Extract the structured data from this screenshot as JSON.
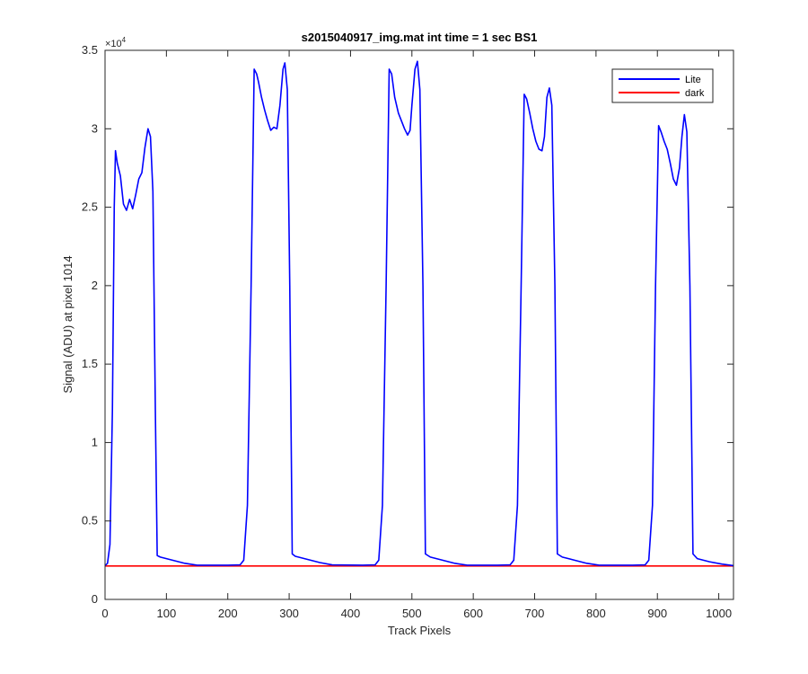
{
  "chart_data": {
    "type": "line",
    "title": "s2015040917_img.mat int time = 1 sec   BS1",
    "xlabel": "Track Pixels",
    "ylabel": "Signal (ADU) at pixel 1014",
    "xlim": [
      0,
      1024
    ],
    "ylim": [
      0,
      35000
    ],
    "x_ticks": [
      0,
      100,
      200,
      300,
      400,
      500,
      600,
      700,
      800,
      900,
      1000
    ],
    "x_tick_labels": [
      "0",
      "100",
      "200",
      "300",
      "400",
      "500",
      "600",
      "700",
      "800",
      "900",
      "1000"
    ],
    "y_ticks": [
      0,
      5000,
      10000,
      15000,
      20000,
      25000,
      30000,
      35000
    ],
    "y_tick_labels": [
      "0",
      "0.5",
      "1",
      "1.5",
      "2",
      "2.5",
      "3",
      "3.5"
    ],
    "y_multiplier_label": "×10",
    "y_multiplier_exponent": "4",
    "grid": false,
    "legend_position": "top-right",
    "series": [
      {
        "name": "Lite",
        "color": "#0000ff",
        "points": [
          [
            0,
            2150
          ],
          [
            4,
            2300
          ],
          [
            8,
            3500
          ],
          [
            12,
            12000
          ],
          [
            15,
            25000
          ],
          [
            17,
            28600
          ],
          [
            20,
            27800
          ],
          [
            25,
            27000
          ],
          [
            30,
            25200
          ],
          [
            35,
            24800
          ],
          [
            40,
            25500
          ],
          [
            45,
            24900
          ],
          [
            50,
            25800
          ],
          [
            55,
            26800
          ],
          [
            60,
            27200
          ],
          [
            65,
            28800
          ],
          [
            70,
            30000
          ],
          [
            74,
            29500
          ],
          [
            78,
            26000
          ],
          [
            82,
            12000
          ],
          [
            85,
            2800
          ],
          [
            90,
            2700
          ],
          [
            110,
            2500
          ],
          [
            130,
            2300
          ],
          [
            150,
            2180
          ],
          [
            200,
            2180
          ],
          [
            220,
            2200
          ],
          [
            226,
            2500
          ],
          [
            232,
            6000
          ],
          [
            238,
            20000
          ],
          [
            243,
            33800
          ],
          [
            247,
            33500
          ],
          [
            250,
            33000
          ],
          [
            255,
            32000
          ],
          [
            260,
            31200
          ],
          [
            265,
            30500
          ],
          [
            270,
            29900
          ],
          [
            275,
            30100
          ],
          [
            280,
            30000
          ],
          [
            285,
            31500
          ],
          [
            290,
            33800
          ],
          [
            293,
            34200
          ],
          [
            297,
            32500
          ],
          [
            301,
            20000
          ],
          [
            305,
            2900
          ],
          [
            310,
            2750
          ],
          [
            330,
            2550
          ],
          [
            350,
            2350
          ],
          [
            370,
            2200
          ],
          [
            420,
            2180
          ],
          [
            440,
            2200
          ],
          [
            446,
            2500
          ],
          [
            452,
            6000
          ],
          [
            458,
            20000
          ],
          [
            463,
            33800
          ],
          [
            467,
            33500
          ],
          [
            472,
            32000
          ],
          [
            478,
            31000
          ],
          [
            483,
            30500
          ],
          [
            488,
            30000
          ],
          [
            493,
            29600
          ],
          [
            497,
            29900
          ],
          [
            500,
            31500
          ],
          [
            505,
            33800
          ],
          [
            509,
            34300
          ],
          [
            513,
            32500
          ],
          [
            518,
            20000
          ],
          [
            522,
            2900
          ],
          [
            530,
            2700
          ],
          [
            550,
            2500
          ],
          [
            570,
            2300
          ],
          [
            590,
            2180
          ],
          [
            640,
            2180
          ],
          [
            660,
            2200
          ],
          [
            666,
            2500
          ],
          [
            672,
            6000
          ],
          [
            678,
            20000
          ],
          [
            683,
            32200
          ],
          [
            687,
            31900
          ],
          [
            692,
            31000
          ],
          [
            697,
            30000
          ],
          [
            702,
            29200
          ],
          [
            707,
            28700
          ],
          [
            712,
            28600
          ],
          [
            716,
            29500
          ],
          [
            720,
            32000
          ],
          [
            724,
            32600
          ],
          [
            728,
            31500
          ],
          [
            733,
            20000
          ],
          [
            737,
            2900
          ],
          [
            745,
            2700
          ],
          [
            765,
            2500
          ],
          [
            785,
            2300
          ],
          [
            805,
            2180
          ],
          [
            860,
            2180
          ],
          [
            880,
            2200
          ],
          [
            886,
            2500
          ],
          [
            892,
            6000
          ],
          [
            897,
            20000
          ],
          [
            902,
            30200
          ],
          [
            906,
            29800
          ],
          [
            911,
            29200
          ],
          [
            916,
            28700
          ],
          [
            921,
            27800
          ],
          [
            926,
            26800
          ],
          [
            931,
            26400
          ],
          [
            936,
            27500
          ],
          [
            940,
            29500
          ],
          [
            944,
            30900
          ],
          [
            948,
            29800
          ],
          [
            953,
            20000
          ],
          [
            958,
            2900
          ],
          [
            965,
            2600
          ],
          [
            985,
            2400
          ],
          [
            1005,
            2250
          ],
          [
            1024,
            2150
          ]
        ]
      },
      {
        "name": "dark",
        "color": "#ff0000",
        "points": [
          [
            0,
            2130
          ],
          [
            1024,
            2130
          ]
        ]
      }
    ]
  }
}
